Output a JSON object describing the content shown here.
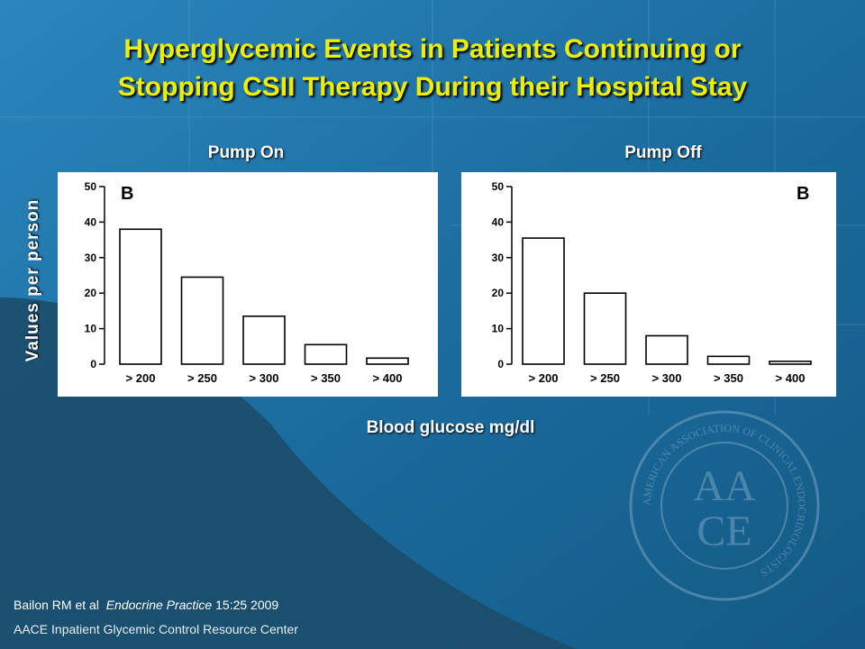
{
  "title": {
    "line1": "Hyperglycemic Events in Patients Continuing or",
    "line2": "Stopping CSII Therapy During their Hospital Stay"
  },
  "y_axis_label": "Values per person",
  "x_axis_label": "Blood glucose mg/dl",
  "citation": {
    "authors": "Bailon RM et al",
    "journal": "Endocrine Practice",
    "ref": "15:25 2009"
  },
  "footer": "AACE Inpatient Glycemic Control Resource Center",
  "logo": {
    "letters": "AACE",
    "ring_text": "AMERICAN ASSOCIATION OF CLINICAL ENDOCRINOLOGISTS"
  },
  "colors": {
    "title": "#f0ee00",
    "background": "#1f6fa0",
    "bars_fill": "#ffffff",
    "bars_stroke": "#000000"
  },
  "chart_data": [
    {
      "type": "bar",
      "title": "Pump On",
      "panel_letter": "B",
      "categories": [
        "> 200",
        "> 250",
        "> 300",
        "> 350",
        "> 400"
      ],
      "values": [
        38,
        24.5,
        13.5,
        5.5,
        1.7
      ],
      "yticks": [
        0,
        10,
        20,
        30,
        40,
        50
      ],
      "ylim": [
        0,
        50
      ],
      "grid": false
    },
    {
      "type": "bar",
      "title": "Pump Off",
      "panel_letter": "B",
      "categories": [
        "> 200",
        "> 250",
        "> 300",
        "> 350",
        "> 400"
      ],
      "values": [
        35.5,
        20,
        8,
        2.2,
        0.8
      ],
      "yticks": [
        0,
        10,
        20,
        30,
        40,
        50
      ],
      "ylim": [
        0,
        50
      ],
      "grid": false
    }
  ]
}
